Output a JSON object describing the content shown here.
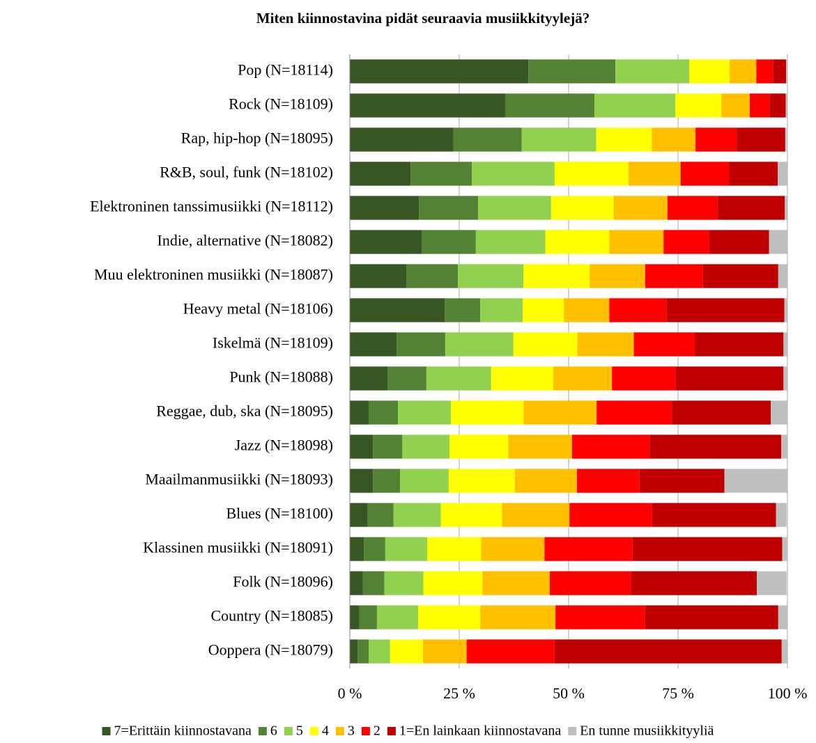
{
  "chart_data": {
    "type": "stacked_barh",
    "title": "Miten kiinnostavina pidät seuraavia musiikkityylejä?",
    "categories": [
      "Pop (N=18114)",
      "Rock (N=18109)",
      "Rap, hip-hop (N=18095)",
      "R&B, soul, funk (N=18102)",
      "Elektroninen tanssimusiikki (N=18112)",
      "Indie, alternative (N=18082)",
      "Muu elektroninen musiikki (N=18087)",
      "Heavy metal (N=18106)",
      "Iskelmä (N=18109)",
      "Punk (N=18088)",
      "Reggae, dub, ska (N=18095)",
      "Jazz (N=18098)",
      "Maailmanmusiikki (N=18093)",
      "Blues (N=18100)",
      "Klassinen musiikki (N=18091)",
      "Folk (N=18096)",
      "Country (N=18085)",
      "Ooppera (N=18079)"
    ],
    "series": [
      {
        "name": "7=Erittäin kiinnostavana",
        "color": "#375623",
        "values": [
          40.8,
          35.5,
          23.7,
          13.9,
          15.8,
          16.4,
          12.9,
          21.7,
          10.7,
          8.6,
          4.3,
          5.3,
          5.3,
          4.1,
          3.2,
          3.0,
          2.2,
          1.8
        ]
      },
      {
        "name": "6",
        "color": "#548235",
        "values": [
          19.9,
          20.4,
          15.6,
          14.0,
          13.5,
          12.4,
          11.8,
          8.1,
          11.1,
          8.9,
          6.7,
          6.7,
          6.2,
          5.9,
          4.9,
          4.9,
          4.0,
          2.5
        ]
      },
      {
        "name": "5",
        "color": "#92d050",
        "values": [
          16.9,
          18.5,
          17.0,
          18.9,
          16.7,
          15.9,
          15.0,
          9.7,
          15.6,
          14.8,
          12.1,
          10.8,
          11.1,
          10.8,
          9.6,
          8.9,
          9.4,
          4.9
        ]
      },
      {
        "name": "4",
        "color": "#ffff00",
        "values": [
          9.2,
          10.5,
          12.7,
          16.9,
          14.3,
          14.6,
          15.1,
          9.4,
          14.6,
          14.2,
          16.6,
          13.4,
          15.1,
          14.0,
          12.3,
          13.5,
          14.2,
          7.5
        ]
      },
      {
        "name": "3",
        "color": "#ffc000",
        "values": [
          6.1,
          6.5,
          10.0,
          11.9,
          12.3,
          12.4,
          12.7,
          10.4,
          12.9,
          13.4,
          16.7,
          14.6,
          14.2,
          15.4,
          14.5,
          15.4,
          17.2,
          10.0
        ]
      },
      {
        "name": "2",
        "color": "#ff0000",
        "values": [
          3.8,
          4.5,
          9.4,
          11.1,
          11.5,
          10.4,
          13.2,
          13.1,
          14.0,
          14.5,
          17.2,
          17.7,
          14.3,
          18.9,
          20.1,
          18.5,
          20.5,
          20.1
        ]
      },
      {
        "name": "1=En lainkaan kiinnostavana",
        "color": "#c00000",
        "values": [
          3.0,
          3.7,
          11.1,
          11.1,
          15.3,
          13.7,
          17.2,
          26.9,
          20.2,
          24.7,
          22.6,
          30.1,
          19.4,
          28.3,
          34.2,
          28.8,
          30.4,
          51.9
        ]
      },
      {
        "name": "En tunne musiikkityyliä",
        "color": "#bfbfbf",
        "values": [
          0.3,
          0.5,
          0.3,
          2.1,
          0.6,
          4.1,
          2.1,
          0.8,
          0.8,
          1.0,
          3.8,
          1.4,
          14.3,
          2.4,
          1.3,
          6.8,
          2.1,
          1.3
        ]
      }
    ],
    "xlim": [
      0,
      100
    ],
    "xticks": [
      {
        "value": 0,
        "label": "0 %"
      },
      {
        "value": 25,
        "label": "25 %"
      },
      {
        "value": 50,
        "label": "50 %"
      },
      {
        "value": 75,
        "label": "75 %"
      },
      {
        "value": 100,
        "label": "100 %"
      }
    ],
    "grid": true,
    "legend": "bottom"
  }
}
